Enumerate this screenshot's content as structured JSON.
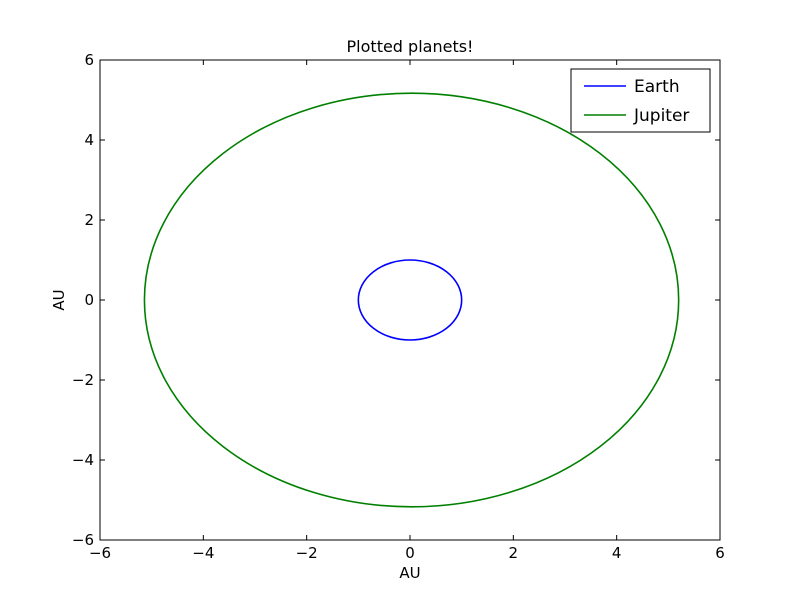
{
  "chart_data": {
    "type": "line",
    "title": "Plotted planets!",
    "xlabel": "AU",
    "ylabel": "AU",
    "xlim": [
      -6,
      6
    ],
    "ylim": [
      -6,
      6
    ],
    "xticks": [
      -6,
      -4,
      -2,
      0,
      2,
      4,
      6
    ],
    "yticks": [
      -6,
      -4,
      -2,
      0,
      2,
      4,
      6
    ],
    "xtick_labels": [
      "−6",
      "−4",
      "−2",
      "0",
      "2",
      "4",
      "6"
    ],
    "ytick_labels": [
      "−6",
      "−4",
      "−2",
      "0",
      "2",
      "4",
      "6"
    ],
    "grid": false,
    "legend_position": "top-right",
    "series": [
      {
        "name": "Earth",
        "color": "#0000ff",
        "shape": "orbit",
        "center": [
          0.0,
          0.0
        ],
        "semi_axis_x": 1.0,
        "semi_axis_y": 1.0,
        "x": [
          1.0,
          0.866,
          0.5,
          0.0,
          -0.5,
          -0.866,
          -1.0,
          -0.866,
          -0.5,
          0.0,
          0.5,
          0.866,
          1.0
        ],
        "y": [
          0.0,
          0.5,
          0.866,
          1.0,
          0.866,
          0.5,
          0.0,
          -0.5,
          -0.866,
          -1.0,
          -0.866,
          -0.5,
          0.0
        ]
      },
      {
        "name": "Jupiter",
        "color": "#008000",
        "shape": "orbit",
        "center": [
          0.03,
          0.0
        ],
        "semi_axis_x": 5.17,
        "semi_axis_y": 5.17,
        "x": [
          5.2,
          4.51,
          2.62,
          0.03,
          -2.56,
          -4.45,
          -5.14,
          -4.45,
          -2.56,
          0.03,
          2.62,
          4.51,
          5.2
        ],
        "y": [
          0.0,
          2.585,
          4.477,
          5.17,
          4.477,
          2.585,
          0.0,
          -2.585,
          -4.477,
          -5.17,
          -4.477,
          -2.585,
          0.0
        ]
      }
    ]
  }
}
